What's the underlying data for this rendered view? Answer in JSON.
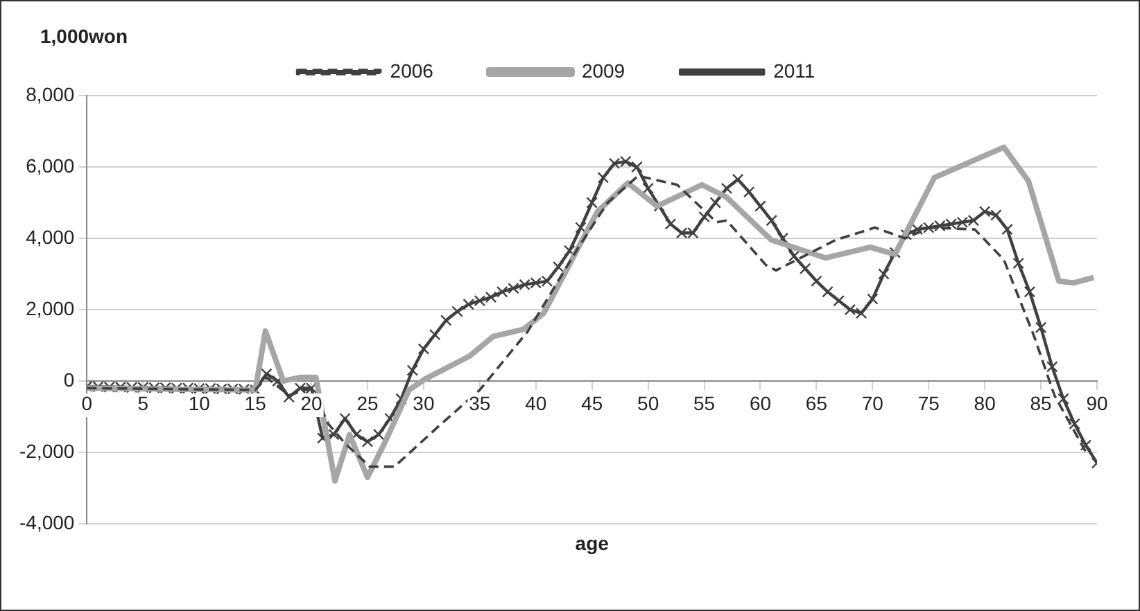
{
  "chart_data": {
    "type": "line",
    "ylabel": "1,000won",
    "xlabel": "age",
    "xlim": [
      0,
      90
    ],
    "xticks": [
      0,
      5,
      10,
      15,
      20,
      25,
      30,
      35,
      40,
      45,
      50,
      55,
      60,
      65,
      70,
      75,
      80,
      85,
      90
    ],
    "ylim": [
      -4000,
      8000
    ],
    "yticks": [
      {
        "value": -4000,
        "label": "-4,000"
      },
      {
        "value": -2000,
        "label": "-2,000"
      },
      0,
      {
        "value": 2000,
        "label": "2,000"
      },
      {
        "value": 4000,
        "label": "4,000"
      },
      {
        "value": 6000,
        "label": "6,000"
      },
      {
        "value": 8000,
        "label": "8,000"
      }
    ],
    "grid": "y",
    "legend": "top",
    "series": [
      {
        "name": "2006",
        "color": "#404040",
        "line_style": "dashed",
        "marker": "none",
        "x": [
          0,
          15,
          16,
          18,
          20,
          21.5,
          23,
          25.2,
          27.4,
          31.4,
          35,
          39.3,
          43.8,
          46.4,
          49.1,
          52.6,
          56.1,
          57,
          60.5,
          61.4,
          66.7,
          70.2,
          72.9,
          75.1,
          79.1,
          81.7,
          84.4,
          86.2,
          89.2
        ],
        "values": [
          -200,
          -250,
          100,
          -400,
          -200,
          -1200,
          -1750,
          -2400,
          -2400,
          -1250,
          -250,
          1400,
          3750,
          5000,
          5750,
          5500,
          4450,
          4500,
          3250,
          3100,
          3950,
          4300,
          4000,
          4300,
          4250,
          3400,
          1250,
          -400,
          -2100
        ]
      },
      {
        "name": "2009",
        "color": "#a6a6a6",
        "line_style": "solid",
        "marker": "none",
        "x": [
          0,
          15,
          15.9,
          17.5,
          19,
          20.4,
          22.1,
          23.4,
          25,
          26.5,
          28.7,
          30.1,
          34.1,
          36.2,
          38.9,
          40.7,
          43.8,
          45.5,
          48.2,
          50.8,
          54.8,
          57,
          61,
          65.8,
          69.8,
          72,
          75.5,
          81.7,
          83.9,
          86.6,
          87.9,
          89.7
        ],
        "values": [
          -200,
          -250,
          1400,
          0,
          100,
          100,
          -2800,
          -1500,
          -2700,
          -1750,
          -250,
          50,
          700,
          1250,
          1450,
          1900,
          3750,
          4750,
          5550,
          4900,
          5500,
          5150,
          3950,
          3450,
          3750,
          3550,
          5700,
          6550,
          5600,
          2800,
          2750,
          2900
        ]
      },
      {
        "name": "2011",
        "color": "#404040",
        "line_style": "solid",
        "marker": "cross",
        "x": [
          0,
          1,
          2,
          3,
          4,
          5,
          6,
          7,
          8,
          9,
          10,
          11,
          12,
          13,
          14,
          15,
          16,
          17,
          18,
          19,
          20,
          21,
          22,
          23,
          24,
          25,
          26,
          27,
          28,
          29,
          30,
          31,
          32,
          33,
          34,
          35,
          36,
          37,
          38,
          39,
          40,
          41,
          42,
          43,
          44,
          45,
          46,
          47,
          48,
          49,
          50,
          51,
          52,
          53,
          54,
          55,
          56,
          57,
          58,
          59,
          60,
          61,
          62,
          63,
          64,
          65,
          66,
          67,
          68,
          69,
          70,
          71,
          72,
          73,
          74,
          75,
          76,
          77,
          78,
          79,
          80,
          81,
          82,
          83,
          84,
          85,
          86,
          87,
          88,
          89,
          90
        ],
        "values": [
          -150,
          -160,
          -170,
          -170,
          -180,
          -180,
          -190,
          -190,
          -200,
          -200,
          -210,
          -210,
          -220,
          -220,
          -230,
          -250,
          200,
          0,
          -450,
          -200,
          -200,
          -1600,
          -1500,
          -1050,
          -1500,
          -1700,
          -1500,
          -1050,
          -500,
          300,
          900,
          1300,
          1700,
          1950,
          2150,
          2250,
          2350,
          2500,
          2600,
          2700,
          2750,
          2800,
          3200,
          3650,
          4300,
          5000,
          5700,
          6100,
          6150,
          6000,
          5400,
          4900,
          4400,
          4150,
          4150,
          4600,
          5000,
          5400,
          5650,
          5300,
          4900,
          4500,
          4000,
          3500,
          3150,
          2800,
          2500,
          2250,
          2000,
          1900,
          2300,
          3000,
          3600,
          4100,
          4250,
          4300,
          4350,
          4400,
          4450,
          4500,
          4750,
          4650,
          4250,
          3300,
          2500,
          1500,
          400,
          -500,
          -1200,
          -1800,
          -2300
        ]
      }
    ]
  }
}
